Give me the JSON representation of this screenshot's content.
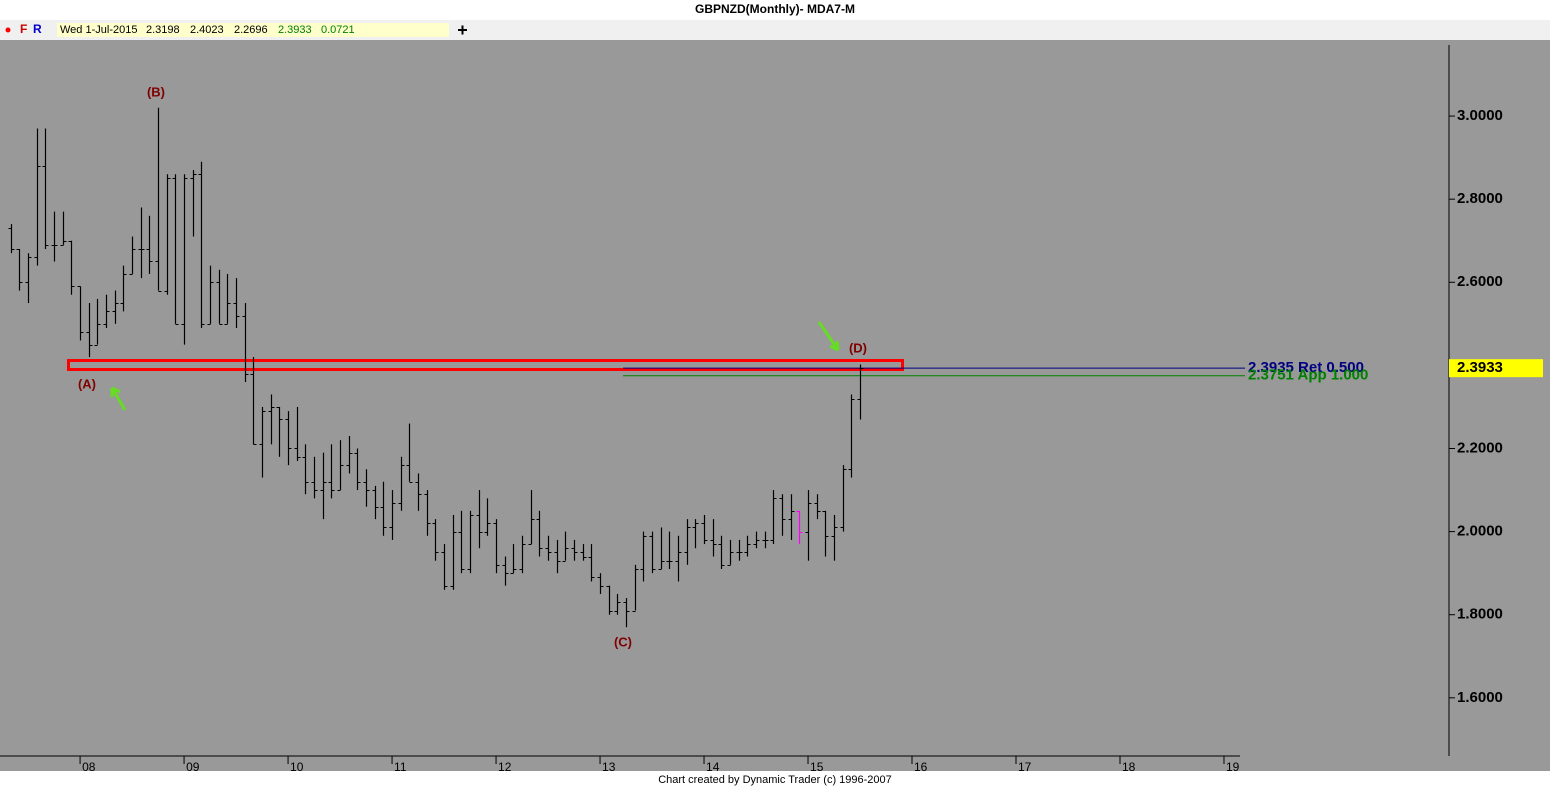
{
  "chart_data": {
    "type": "ohlc",
    "title": "GBPNZD(Monthly)- MDA7-M",
    "toolbar": {
      "buttons": [
        "F",
        "R"
      ],
      "date": "Wed 1-Jul-2015",
      "values": [
        2.3198,
        2.4023,
        2.2696,
        2.3933,
        0.0721
      ]
    },
    "footer": "Chart created by Dynamic Trader  (c) 1996-2007",
    "x": [
      2007.333,
      2007.417,
      2007.5,
      2007.583,
      2007.667,
      2007.75,
      2007.833,
      2007.917,
      2008,
      2008.083,
      2008.167,
      2008.25,
      2008.333,
      2008.417,
      2008.5,
      2008.583,
      2008.667,
      2008.75,
      2008.833,
      2008.917,
      2009,
      2009.083,
      2009.167,
      2009.25,
      2009.333,
      2009.417,
      2009.5,
      2009.583,
      2009.667,
      2009.75,
      2009.833,
      2009.917,
      2010,
      2010.083,
      2010.167,
      2010.25,
      2010.333,
      2010.417,
      2010.5,
      2010.583,
      2010.667,
      2010.75,
      2010.833,
      2010.917,
      2011,
      2011.083,
      2011.167,
      2011.25,
      2011.333,
      2011.417,
      2011.5,
      2011.583,
      2011.667,
      2011.75,
      2011.833,
      2011.917,
      2012,
      2012.083,
      2012.167,
      2012.25,
      2012.333,
      2012.417,
      2012.5,
      2012.583,
      2012.667,
      2012.75,
      2012.833,
      2012.917,
      2013,
      2013.083,
      2013.167,
      2013.25,
      2013.333,
      2013.417,
      2013.5,
      2013.583,
      2013.667,
      2013.75,
      2013.833,
      2013.917,
      2014,
      2014.083,
      2014.167,
      2014.25,
      2014.333,
      2014.417,
      2014.5,
      2014.583,
      2014.667,
      2014.75,
      2014.833,
      2014.917,
      2015,
      2015.083,
      2015.167,
      2015.25,
      2015.333,
      2015.417,
      2015.5
    ],
    "open": [
      2.73,
      2.68,
      2.6,
      2.66,
      2.88,
      2.69,
      2.69,
      2.7,
      2.59,
      2.48,
      2.45,
      2.5,
      2.53,
      2.55,
      2.62,
      2.68,
      2.68,
      2.65,
      2.58,
      2.85,
      2.5,
      2.85,
      2.86,
      2.5,
      2.6,
      2.5,
      2.55,
      2.52,
      2.38,
      2.21,
      2.29,
      2.3,
      2.27,
      2.2,
      2.18,
      2.12,
      2.1,
      2.12,
      2.1,
      2.16,
      2.19,
      2.12,
      2.1,
      2.06,
      2.01,
      2.07,
      2.16,
      2.12,
      2.09,
      2.02,
      1.95,
      1.87,
      2.0,
      1.91,
      2.04,
      2.0,
      2.02,
      1.92,
      1.9,
      1.91,
      1.97,
      2.03,
      1.96,
      1.95,
      1.93,
      1.96,
      1.95,
      1.94,
      1.89,
      1.87,
      1.81,
      1.83,
      1.81,
      1.91,
      1.99,
      1.91,
      1.93,
      1.93,
      1.95,
      2.01,
      2.02,
      1.98,
      1.97,
      1.92,
      1.95,
      1.95,
      1.97,
      1.98,
      1.98,
      2.08,
      2.03,
      2.05,
      2.0,
      2.07,
      2.05,
      1.99,
      2.01,
      2.15,
      2.3198
    ],
    "high": [
      2.74,
      2.68,
      2.67,
      2.97,
      2.97,
      2.77,
      2.77,
      2.7,
      2.59,
      2.55,
      2.56,
      2.57,
      2.58,
      2.64,
      2.71,
      2.78,
      2.76,
      3.02,
      2.86,
      2.86,
      2.86,
      2.87,
      2.89,
      2.64,
      2.63,
      2.62,
      2.61,
      2.55,
      2.42,
      2.3,
      2.33,
      2.3,
      2.29,
      2.3,
      2.21,
      2.18,
      2.19,
      2.21,
      2.22,
      2.23,
      2.2,
      2.15,
      2.11,
      2.12,
      2.1,
      2.18,
      2.26,
      2.14,
      2.1,
      2.03,
      1.97,
      2.04,
      2.05,
      2.05,
      2.1,
      2.08,
      2.03,
      1.94,
      1.97,
      1.99,
      2.1,
      2.05,
      1.99,
      1.98,
      2.0,
      1.98,
      1.97,
      1.97,
      1.9,
      1.87,
      1.85,
      1.84,
      1.92,
      2.0,
      2.0,
      2.01,
      2.0,
      1.99,
      2.03,
      2.03,
      2.04,
      2.03,
      1.99,
      1.98,
      1.98,
      1.99,
      2.0,
      2.0,
      2.1,
      2.09,
      2.09,
      2.05,
      2.1,
      2.09,
      2.05,
      2.04,
      2.16,
      2.33,
      2.4023
    ],
    "low": [
      2.67,
      2.58,
      2.55,
      2.64,
      2.68,
      2.65,
      2.69,
      2.57,
      2.46,
      2.42,
      2.45,
      2.49,
      2.5,
      2.53,
      2.62,
      2.61,
      2.62,
      2.58,
      2.57,
      2.5,
      2.45,
      2.71,
      2.49,
      2.5,
      2.5,
      2.5,
      2.49,
      2.36,
      2.21,
      2.13,
      2.21,
      2.18,
      2.16,
      2.17,
      2.09,
      2.08,
      2.03,
      2.08,
      2.1,
      2.14,
      2.1,
      2.06,
      2.03,
      1.99,
      1.98,
      2.05,
      2.12,
      2.05,
      1.99,
      1.93,
      1.86,
      1.86,
      1.9,
      1.9,
      1.96,
      1.99,
      1.9,
      1.87,
      1.9,
      1.9,
      1.97,
      1.94,
      1.93,
      1.9,
      1.93,
      1.93,
      1.93,
      1.88,
      1.85,
      1.8,
      1.8,
      1.77,
      1.81,
      1.88,
      1.9,
      1.91,
      1.91,
      1.88,
      1.92,
      1.96,
      1.97,
      1.94,
      1.91,
      1.92,
      1.93,
      1.94,
      1.96,
      1.96,
      1.97,
      1.99,
      1.98,
      1.97,
      1.93,
      2.03,
      1.94,
      1.93,
      2.0,
      2.13,
      2.2696
    ],
    "close": [
      2.68,
      2.6,
      2.66,
      2.88,
      2.69,
      2.69,
      2.7,
      2.59,
      2.48,
      2.45,
      2.5,
      2.53,
      2.55,
      2.62,
      2.68,
      2.68,
      2.65,
      2.58,
      2.85,
      2.5,
      2.85,
      2.86,
      2.5,
      2.6,
      2.5,
      2.55,
      2.52,
      2.38,
      2.21,
      2.29,
      2.3,
      2.27,
      2.2,
      2.18,
      2.12,
      2.1,
      2.12,
      2.1,
      2.16,
      2.19,
      2.12,
      2.1,
      2.06,
      2.01,
      2.07,
      2.16,
      2.12,
      2.09,
      2.02,
      1.95,
      1.87,
      2.0,
      1.91,
      2.04,
      2.0,
      2.02,
      1.92,
      1.9,
      1.91,
      1.97,
      2.03,
      1.96,
      1.95,
      1.93,
      1.96,
      1.95,
      1.94,
      1.89,
      1.87,
      1.81,
      1.83,
      1.81,
      1.91,
      1.99,
      1.91,
      1.93,
      1.93,
      1.95,
      2.01,
      2.02,
      1.98,
      1.97,
      1.92,
      1.95,
      1.95,
      1.97,
      1.98,
      1.98,
      2.08,
      2.03,
      2.05,
      2.0,
      2.07,
      2.05,
      1.99,
      2.01,
      2.15,
      2.32,
      2.3933
    ],
    "color": "#000000",
    "highlight_x": 2014.917,
    "highlight_color": "#ff00ff",
    "annotations": [
      "(A)",
      "(B)",
      "(C)",
      "(D)"
    ],
    "annotation_color": "#800000",
    "levels": [
      {
        "value": 2.3935,
        "label": "2.3935 Ret 0.500",
        "color": "#000080"
      },
      {
        "value": 2.3751,
        "label": "2.3751 App 1.000",
        "color": "#008000"
      }
    ],
    "last": {
      "value": 2.3933,
      "color": "#ffff00"
    },
    "xlim": [
      2007.23,
      2019.154
    ],
    "ylim": [
      1.46,
      3.171
    ],
    "xticks": [
      {
        "value": 2008,
        "label": "08"
      },
      {
        "value": 2009,
        "label": "09"
      },
      {
        "value": 2010,
        "label": "10"
      },
      {
        "value": 2011,
        "label": "11"
      },
      {
        "value": 2012,
        "label": "12"
      },
      {
        "value": 2013,
        "label": "13"
      },
      {
        "value": 2014,
        "label": "14"
      },
      {
        "value": 2015,
        "label": "15"
      },
      {
        "value": 2016,
        "label": "16"
      },
      {
        "value": 2017,
        "label": "17"
      },
      {
        "value": 2018,
        "label": "18"
      },
      {
        "value": 2019,
        "label": "19"
      }
    ],
    "yticks": [
      {
        "value": 1.6,
        "label": "1.6000"
      },
      {
        "value": 1.8,
        "label": "1.8000"
      },
      {
        "value": 2,
        "label": "2.0000"
      },
      {
        "value": 2.2,
        "label": "2.2000"
      },
      {
        "value": 2.4,
        "label": "2.4000"
      },
      {
        "value": 2.6,
        "label": "2.6000"
      },
      {
        "value": 2.8,
        "label": "2.8000"
      },
      {
        "value": 3,
        "label": "3.0000"
      }
    ],
    "background": "#999999"
  }
}
